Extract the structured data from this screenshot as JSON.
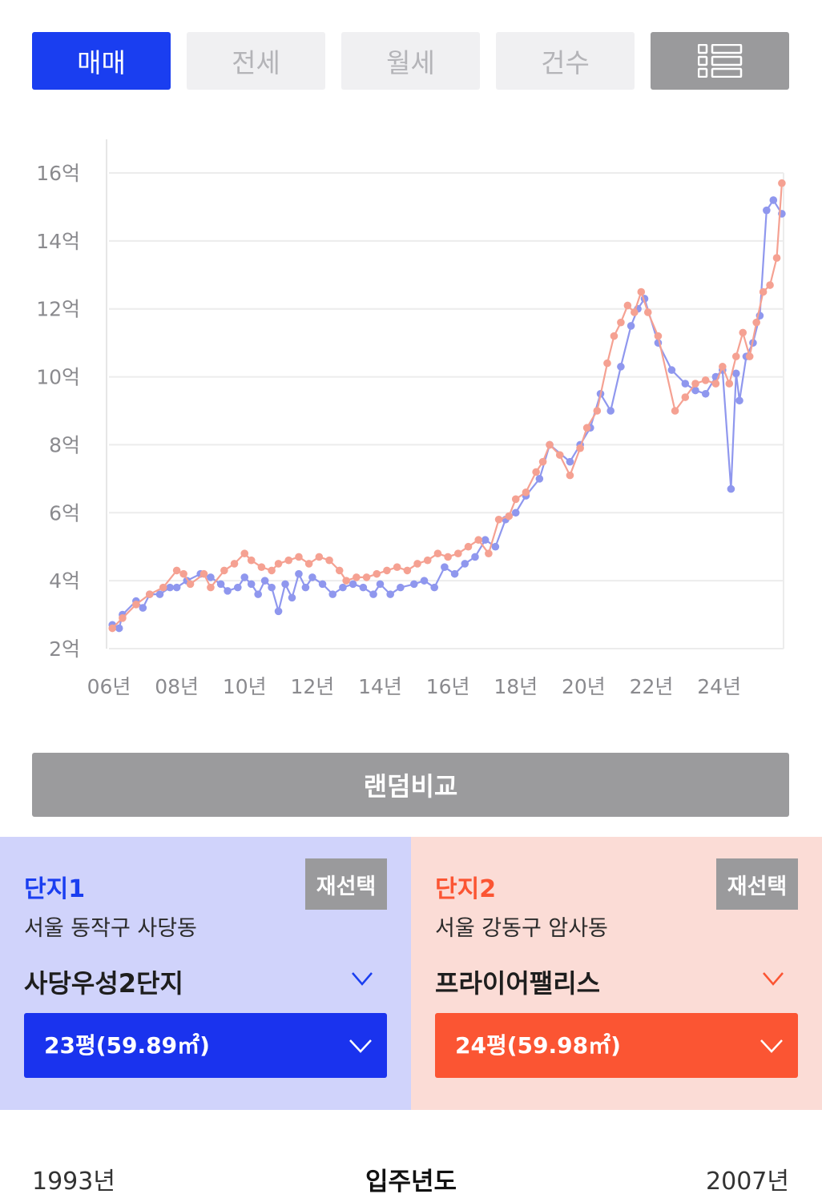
{
  "tabs": {
    "sale": "매매",
    "jeonse": "전세",
    "wolse": "월세",
    "count": "건수",
    "list_icon": "list-icon"
  },
  "chart_data": {
    "type": "line",
    "y_ticks": [
      "16억",
      "14억",
      "12억",
      "10억",
      "8억",
      "6억",
      "4억",
      "2억"
    ],
    "x_ticks": [
      "06년",
      "08년",
      "10년",
      "12년",
      "14년",
      "16년",
      "18년",
      "20년",
      "22년",
      "24년"
    ],
    "ylim": [
      2,
      16
    ],
    "xlim": [
      2006.0,
      2025.9
    ],
    "grid": true,
    "series": [
      {
        "color": "#8f97ee",
        "points": [
          [
            2006.1,
            2.7
          ],
          [
            2006.3,
            2.6
          ],
          [
            2006.4,
            3.0
          ],
          [
            2006.8,
            3.4
          ],
          [
            2007.0,
            3.2
          ],
          [
            2007.2,
            3.6
          ],
          [
            2007.5,
            3.6
          ],
          [
            2007.8,
            3.8
          ],
          [
            2008.0,
            3.8
          ],
          [
            2008.3,
            4.0
          ],
          [
            2008.7,
            4.2
          ],
          [
            2009.0,
            4.1
          ],
          [
            2009.3,
            3.9
          ],
          [
            2009.5,
            3.7
          ],
          [
            2009.8,
            3.8
          ],
          [
            2010.0,
            4.1
          ],
          [
            2010.2,
            3.9
          ],
          [
            2010.4,
            3.6
          ],
          [
            2010.6,
            4.0
          ],
          [
            2010.8,
            3.8
          ],
          [
            2011.0,
            3.1
          ],
          [
            2011.2,
            3.9
          ],
          [
            2011.4,
            3.5
          ],
          [
            2011.6,
            4.2
          ],
          [
            2011.8,
            3.8
          ],
          [
            2012.0,
            4.1
          ],
          [
            2012.3,
            3.9
          ],
          [
            2012.6,
            3.6
          ],
          [
            2012.9,
            3.8
          ],
          [
            2013.2,
            3.9
          ],
          [
            2013.5,
            3.8
          ],
          [
            2013.8,
            3.6
          ],
          [
            2014.0,
            3.9
          ],
          [
            2014.3,
            3.6
          ],
          [
            2014.6,
            3.8
          ],
          [
            2015.0,
            3.9
          ],
          [
            2015.3,
            4.0
          ],
          [
            2015.6,
            3.8
          ],
          [
            2015.9,
            4.4
          ],
          [
            2016.2,
            4.2
          ],
          [
            2016.5,
            4.5
          ],
          [
            2016.8,
            4.7
          ],
          [
            2017.1,
            5.2
          ],
          [
            2017.4,
            5.0
          ],
          [
            2017.7,
            5.8
          ],
          [
            2018.0,
            6.0
          ],
          [
            2018.3,
            6.5
          ],
          [
            2018.7,
            7.0
          ],
          [
            2019.0,
            8.0
          ],
          [
            2019.6,
            7.5
          ],
          [
            2019.9,
            8.0
          ],
          [
            2020.2,
            8.5
          ],
          [
            2020.5,
            9.5
          ],
          [
            2020.8,
            9.0
          ],
          [
            2021.1,
            10.3
          ],
          [
            2021.4,
            11.5
          ],
          [
            2021.6,
            12.0
          ],
          [
            2021.8,
            12.3
          ],
          [
            2022.2,
            11.0
          ],
          [
            2022.6,
            10.2
          ],
          [
            2023.0,
            9.8
          ],
          [
            2023.3,
            9.6
          ],
          [
            2023.6,
            9.5
          ],
          [
            2023.9,
            10.0
          ],
          [
            2024.1,
            10.2
          ],
          [
            2024.35,
            6.7
          ],
          [
            2024.5,
            10.1
          ],
          [
            2024.6,
            9.3
          ],
          [
            2024.8,
            10.6
          ],
          [
            2025.0,
            11.0
          ],
          [
            2025.2,
            11.8
          ],
          [
            2025.4,
            14.9
          ],
          [
            2025.6,
            15.2
          ],
          [
            2025.85,
            14.8
          ]
        ]
      },
      {
        "color": "#f5a192",
        "points": [
          [
            2006.1,
            2.6
          ],
          [
            2006.4,
            2.9
          ],
          [
            2006.8,
            3.3
          ],
          [
            2007.2,
            3.6
          ],
          [
            2007.6,
            3.8
          ],
          [
            2008.0,
            4.3
          ],
          [
            2008.2,
            4.2
          ],
          [
            2008.4,
            3.9
          ],
          [
            2008.8,
            4.2
          ],
          [
            2009.0,
            3.8
          ],
          [
            2009.4,
            4.3
          ],
          [
            2009.7,
            4.5
          ],
          [
            2010.0,
            4.8
          ],
          [
            2010.2,
            4.6
          ],
          [
            2010.5,
            4.4
          ],
          [
            2010.8,
            4.3
          ],
          [
            2011.0,
            4.5
          ],
          [
            2011.3,
            4.6
          ],
          [
            2011.6,
            4.7
          ],
          [
            2011.9,
            4.5
          ],
          [
            2012.2,
            4.7
          ],
          [
            2012.5,
            4.6
          ],
          [
            2012.8,
            4.3
          ],
          [
            2013.0,
            4.0
          ],
          [
            2013.3,
            4.1
          ],
          [
            2013.6,
            4.1
          ],
          [
            2013.9,
            4.2
          ],
          [
            2014.2,
            4.3
          ],
          [
            2014.5,
            4.4
          ],
          [
            2014.8,
            4.3
          ],
          [
            2015.1,
            4.5
          ],
          [
            2015.4,
            4.6
          ],
          [
            2015.7,
            4.8
          ],
          [
            2016.0,
            4.7
          ],
          [
            2016.3,
            4.8
          ],
          [
            2016.6,
            5.0
          ],
          [
            2016.9,
            5.2
          ],
          [
            2017.2,
            4.8
          ],
          [
            2017.5,
            5.8
          ],
          [
            2017.8,
            5.9
          ],
          [
            2018.0,
            6.4
          ],
          [
            2018.3,
            6.6
          ],
          [
            2018.6,
            7.2
          ],
          [
            2018.8,
            7.5
          ],
          [
            2019.0,
            8.0
          ],
          [
            2019.3,
            7.7
          ],
          [
            2019.6,
            7.1
          ],
          [
            2019.9,
            7.9
          ],
          [
            2020.1,
            8.5
          ],
          [
            2020.4,
            9.0
          ],
          [
            2020.7,
            10.4
          ],
          [
            2020.9,
            11.2
          ],
          [
            2021.1,
            11.6
          ],
          [
            2021.3,
            12.1
          ],
          [
            2021.5,
            11.9
          ],
          [
            2021.7,
            12.5
          ],
          [
            2021.9,
            11.9
          ],
          [
            2022.2,
            11.2
          ],
          [
            2022.7,
            9.0
          ],
          [
            2023.0,
            9.4
          ],
          [
            2023.3,
            9.8
          ],
          [
            2023.6,
            9.9
          ],
          [
            2023.9,
            9.8
          ],
          [
            2024.1,
            10.3
          ],
          [
            2024.3,
            9.8
          ],
          [
            2024.5,
            10.6
          ],
          [
            2024.7,
            11.3
          ],
          [
            2024.9,
            10.6
          ],
          [
            2025.1,
            11.6
          ],
          [
            2025.3,
            12.5
          ],
          [
            2025.5,
            12.7
          ],
          [
            2025.7,
            13.5
          ],
          [
            2025.85,
            15.7
          ]
        ]
      }
    ]
  },
  "compare_button": "랜덤비교",
  "complex1": {
    "title": "단지1",
    "reselect": "재선택",
    "region": "서울 동작구 사당동",
    "name": "사당우성2단지",
    "size": "23평(59.89㎡)"
  },
  "complex2": {
    "title": "단지2",
    "reselect": "재선택",
    "region": "서울 강동구 암사동",
    "name": "프라이어팰리스",
    "size": "24평(59.98㎡)"
  },
  "move_in": {
    "label": "입주년도",
    "left": "1993년",
    "right": "2007년"
  }
}
